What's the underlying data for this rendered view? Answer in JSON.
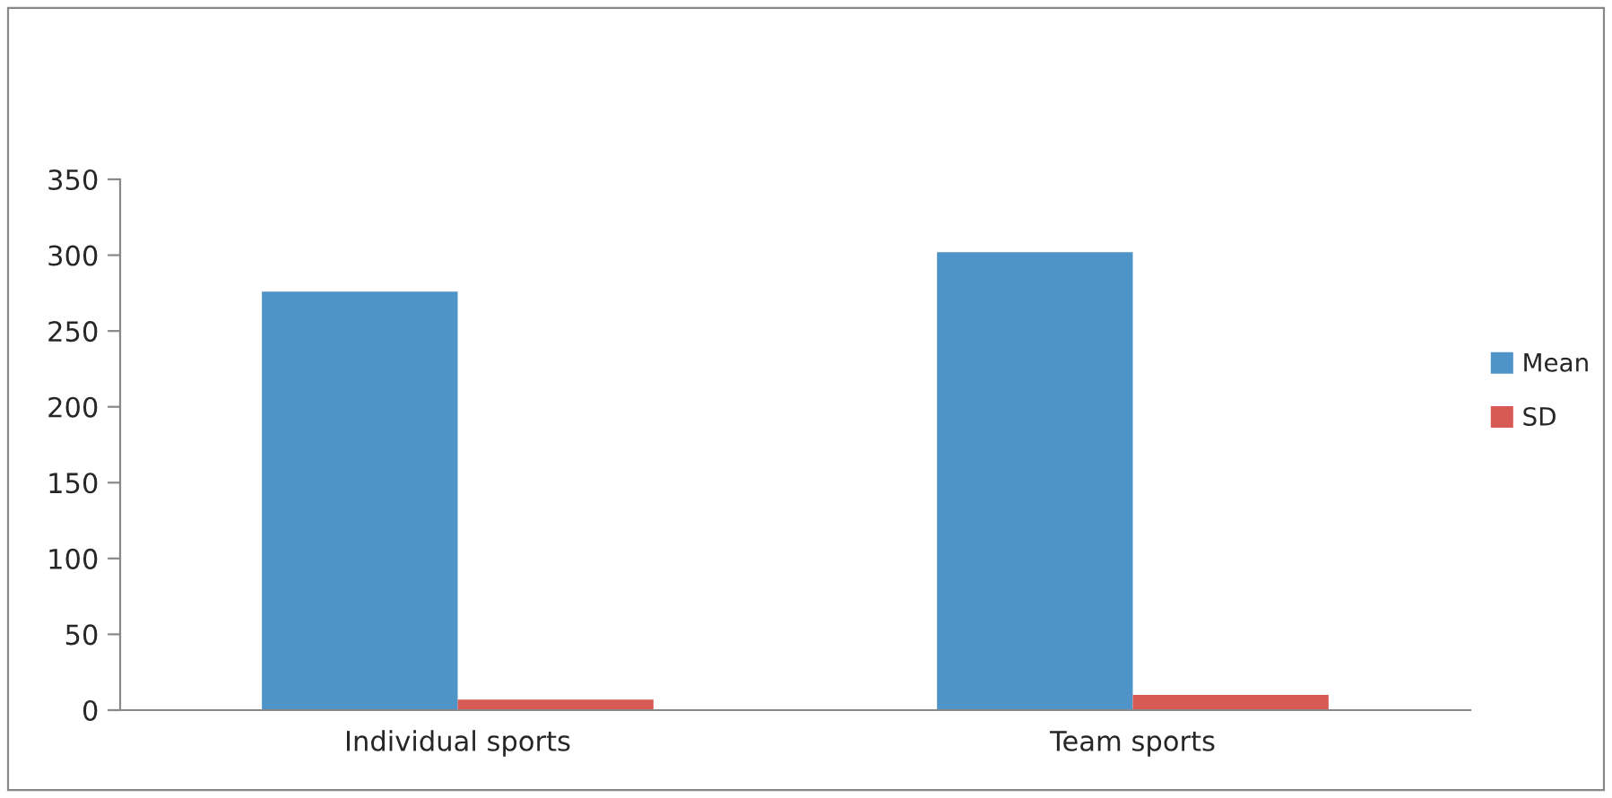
{
  "chart_data": {
    "type": "bar",
    "categories": [
      "Individual sports",
      "Team sports"
    ],
    "series": [
      {
        "name": "Mean",
        "color": "#4f94c9",
        "values": [
          276,
          302
        ]
      },
      {
        "name": "SD",
        "color": "#d85a55",
        "values": [
          7,
          10
        ]
      }
    ],
    "ylim": [
      0,
      350
    ],
    "yticks": [
      0,
      50,
      100,
      150,
      200,
      250,
      300,
      350
    ],
    "grid": false,
    "legend": "right"
  }
}
